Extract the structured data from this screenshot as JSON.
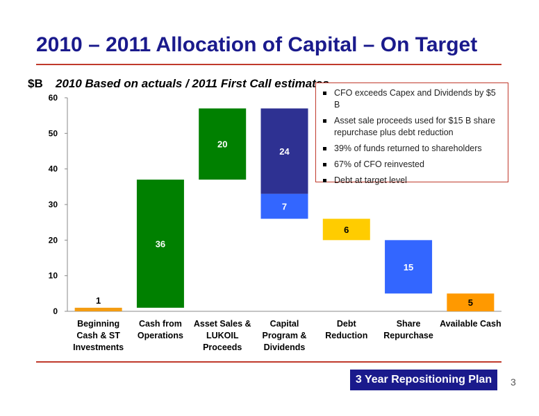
{
  "slide": {
    "title": "2010 – 2011 Allocation of Capital – On Target",
    "unit_label": "$B",
    "subtitle": "2010 Based on actuals / 2011 First Call estimates",
    "badge": "3 Year Repositioning Plan",
    "page_number": "3"
  },
  "callout": {
    "bullets": [
      "CFO exceeds Capex and Dividends by $5 B",
      "Asset sale proceeds used for $15 B share repurchase plus debt reduction",
      "39% of funds returned to shareholders",
      "67% of CFO reinvested",
      "Debt at target level"
    ]
  },
  "chart_data": {
    "type": "bar",
    "subtype": "waterfall",
    "ylim": [
      0,
      60
    ],
    "yticks": [
      0,
      10,
      20,
      30,
      40,
      50,
      60
    ],
    "categories": [
      [
        "Beginning",
        "Cash & ST",
        "Investments"
      ],
      [
        "Cash from",
        "Operations"
      ],
      [
        "Asset Sales &",
        "LUKOIL",
        "Proceeds"
      ],
      [
        "Capital",
        "Program &",
        "Dividends"
      ],
      [
        "Debt",
        "Reduction"
      ],
      [
        "Share",
        "Repurchase"
      ],
      [
        "Available Cash"
      ]
    ],
    "segments": [
      {
        "category": 0,
        "bottom": 0,
        "top": 1,
        "color": "#f39c12",
        "label": "1",
        "label_pos": "above"
      },
      {
        "category": 1,
        "bottom": 1,
        "top": 37,
        "color": "#008000",
        "label": "36",
        "label_pos": "inside"
      },
      {
        "category": 2,
        "bottom": 37,
        "top": 57,
        "color": "#008000",
        "label": "20",
        "label_pos": "inside"
      },
      {
        "category": 3,
        "bottom": 33,
        "top": 57,
        "color": "#2e3192",
        "label": "24",
        "label_pos": "inside"
      },
      {
        "category": 3,
        "bottom": 26,
        "top": 33,
        "color": "#3366ff",
        "label": "7",
        "label_pos": "inside"
      },
      {
        "category": 4,
        "bottom": 20,
        "top": 26,
        "color": "#ffcc00",
        "label": "6",
        "label_pos": "inside"
      },
      {
        "category": 5,
        "bottom": 5,
        "top": 20,
        "color": "#3366ff",
        "label": "15",
        "label_pos": "inside"
      },
      {
        "category": 6,
        "bottom": 0,
        "top": 5,
        "color": "#ff9900",
        "label": "5",
        "label_pos": "inside"
      }
    ],
    "label_colors": {
      "dark": "#000000",
      "light": "#ffffff"
    },
    "grid": false,
    "legend": "none"
  }
}
